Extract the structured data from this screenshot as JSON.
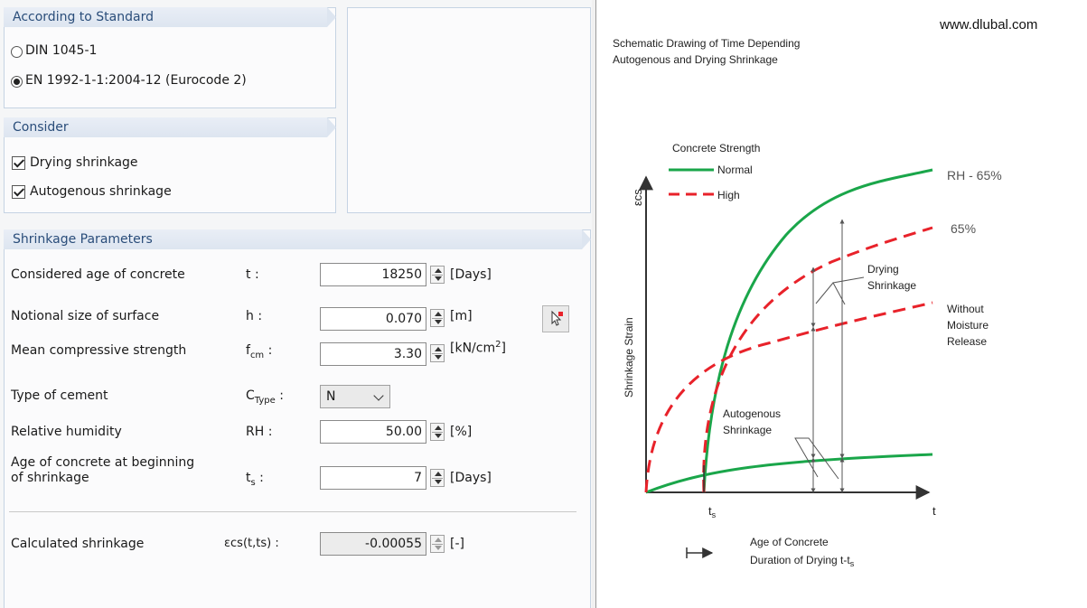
{
  "standard": {
    "title": "According to Standard",
    "options": [
      {
        "label": "DIN 1045-1",
        "selected": false
      },
      {
        "label": "EN 1992-1-1:2004-12 (Eurocode 2)",
        "selected": true
      }
    ]
  },
  "consider": {
    "title": "Consider",
    "options": [
      {
        "label": "Drying shrinkage",
        "checked": true
      },
      {
        "label": "Autogenous shrinkage",
        "checked": true
      }
    ]
  },
  "params": {
    "title": "Shrinkage Parameters",
    "age": {
      "label": "Considered age of concrete",
      "symbol": "t :",
      "value": "18250",
      "unit": "[Days]"
    },
    "notional": {
      "label": "Notional size of surface",
      "symbol": "h :",
      "value": "0.070",
      "unit": "[m]"
    },
    "fcm": {
      "label": "Mean compressive strength",
      "symbol_main": "f",
      "symbol_sub": "cm",
      "symbol_tail": " :",
      "value": "3.30",
      "unit_main": "[kN/cm",
      "unit_sup": "2",
      "unit_tail": "]"
    },
    "cement": {
      "label": "Type of cement",
      "symbol_main": "C",
      "symbol_sub": "Type",
      "symbol_tail": " :",
      "value": "N"
    },
    "rh": {
      "label": "Relative humidity",
      "symbol": "RH :",
      "value": "50.00",
      "unit": "[%]"
    },
    "ts": {
      "label_line1": "Age of concrete at beginning",
      "label_line2": "of shrinkage",
      "symbol_main": "t",
      "symbol_sub": "s",
      "symbol_tail": " :",
      "value": "7",
      "unit": "[Days]"
    }
  },
  "result": {
    "label": "Calculated shrinkage",
    "symbol": "εcs(t,ts) :",
    "value": "-0.00055",
    "unit": "[-]"
  },
  "figure": {
    "site": "www.dlubal.com",
    "title_line1": "Schematic Drawing of Time Depending",
    "title_line2": "Autogenous and Drying Shrinkage",
    "legend_title": "Concrete Strength",
    "legend_normal": "Normal",
    "legend_high": "High",
    "y_axis_symbol": "εcs",
    "y_axis_label": "Shrinkage Strain",
    "x_axis_symbol": "t",
    "ts_label": "t",
    "ts_sub": "s",
    "rh_label": "RH - 65%",
    "rh_label2": "65%",
    "drying_line1": "Drying",
    "drying_line2": "Shrinkage",
    "without_line1": "Without",
    "without_line2": "Moisture",
    "without_line3": "Release",
    "autog_line1": "Autogenous",
    "autog_line2": "Shrinkage",
    "bottom_line1": "Age of Concrete",
    "bottom_line2": "Duration of Drying t-t",
    "bottom_sub": "s",
    "color_normal": "#1aa64a",
    "color_high": "#e8222a"
  }
}
